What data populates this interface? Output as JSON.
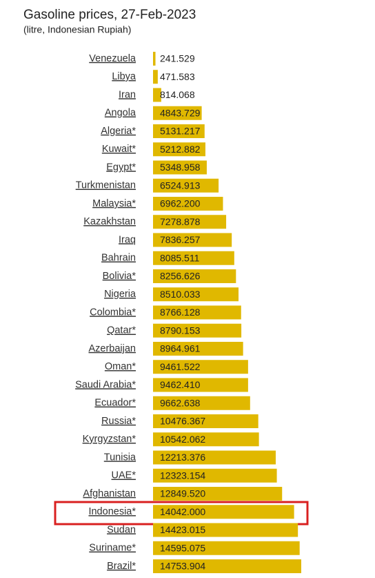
{
  "chart_data": {
    "type": "bar",
    "orientation": "horizontal",
    "title": "Gasoline prices, 27-Feb-2023",
    "subtitle": "(litre, Indonesian Rupiah)",
    "color": "#e0b800",
    "categories": [
      "Venezuela",
      "Libya",
      "Iran",
      "Angola",
      "Algeria*",
      "Kuwait*",
      "Egypt*",
      "Turkmenistan",
      "Malaysia*",
      "Kazakhstan",
      "Iraq",
      "Bahrain",
      "Bolivia*",
      "Nigeria",
      "Colombia*",
      "Qatar*",
      "Azerbaijan",
      "Oman*",
      "Saudi Arabia*",
      "Ecuador*",
      "Russia*",
      "Kyrgyzstan*",
      "Tunisia",
      "UAE*",
      "Afghanistan",
      "Indonesia*",
      "Sudan",
      "Suriname*",
      "Brazil*"
    ],
    "values": [
      241.529,
      471.583,
      814.068,
      4843.729,
      5131.217,
      5212.882,
      5348.958,
      6524.913,
      6962.2,
      7278.878,
      7836.257,
      8085.511,
      8256.626,
      8510.033,
      8766.128,
      8790.153,
      8964.961,
      9461.522,
      9462.41,
      9662.638,
      10476.367,
      10542.062,
      12213.376,
      12323.154,
      12849.52,
      14042,
      14423.015,
      14595.075,
      14753.904
    ],
    "value_labels": [
      "241.529",
      "471.583",
      "814.068",
      "4843.729",
      "5131.217",
      "5212.882",
      "5348.958",
      "6524.913",
      "6962.200",
      "7278.878",
      "7836.257",
      "8085.511",
      "8256.626",
      "8510.033",
      "8766.128",
      "8790.153",
      "8964.961",
      "9461.522",
      "9462.410",
      "9662.638",
      "10476.367",
      "10542.062",
      "12213.376",
      "12323.154",
      "12849.520",
      "14042.000",
      "14423.015",
      "14595.075",
      "14753.904"
    ]
  }
}
